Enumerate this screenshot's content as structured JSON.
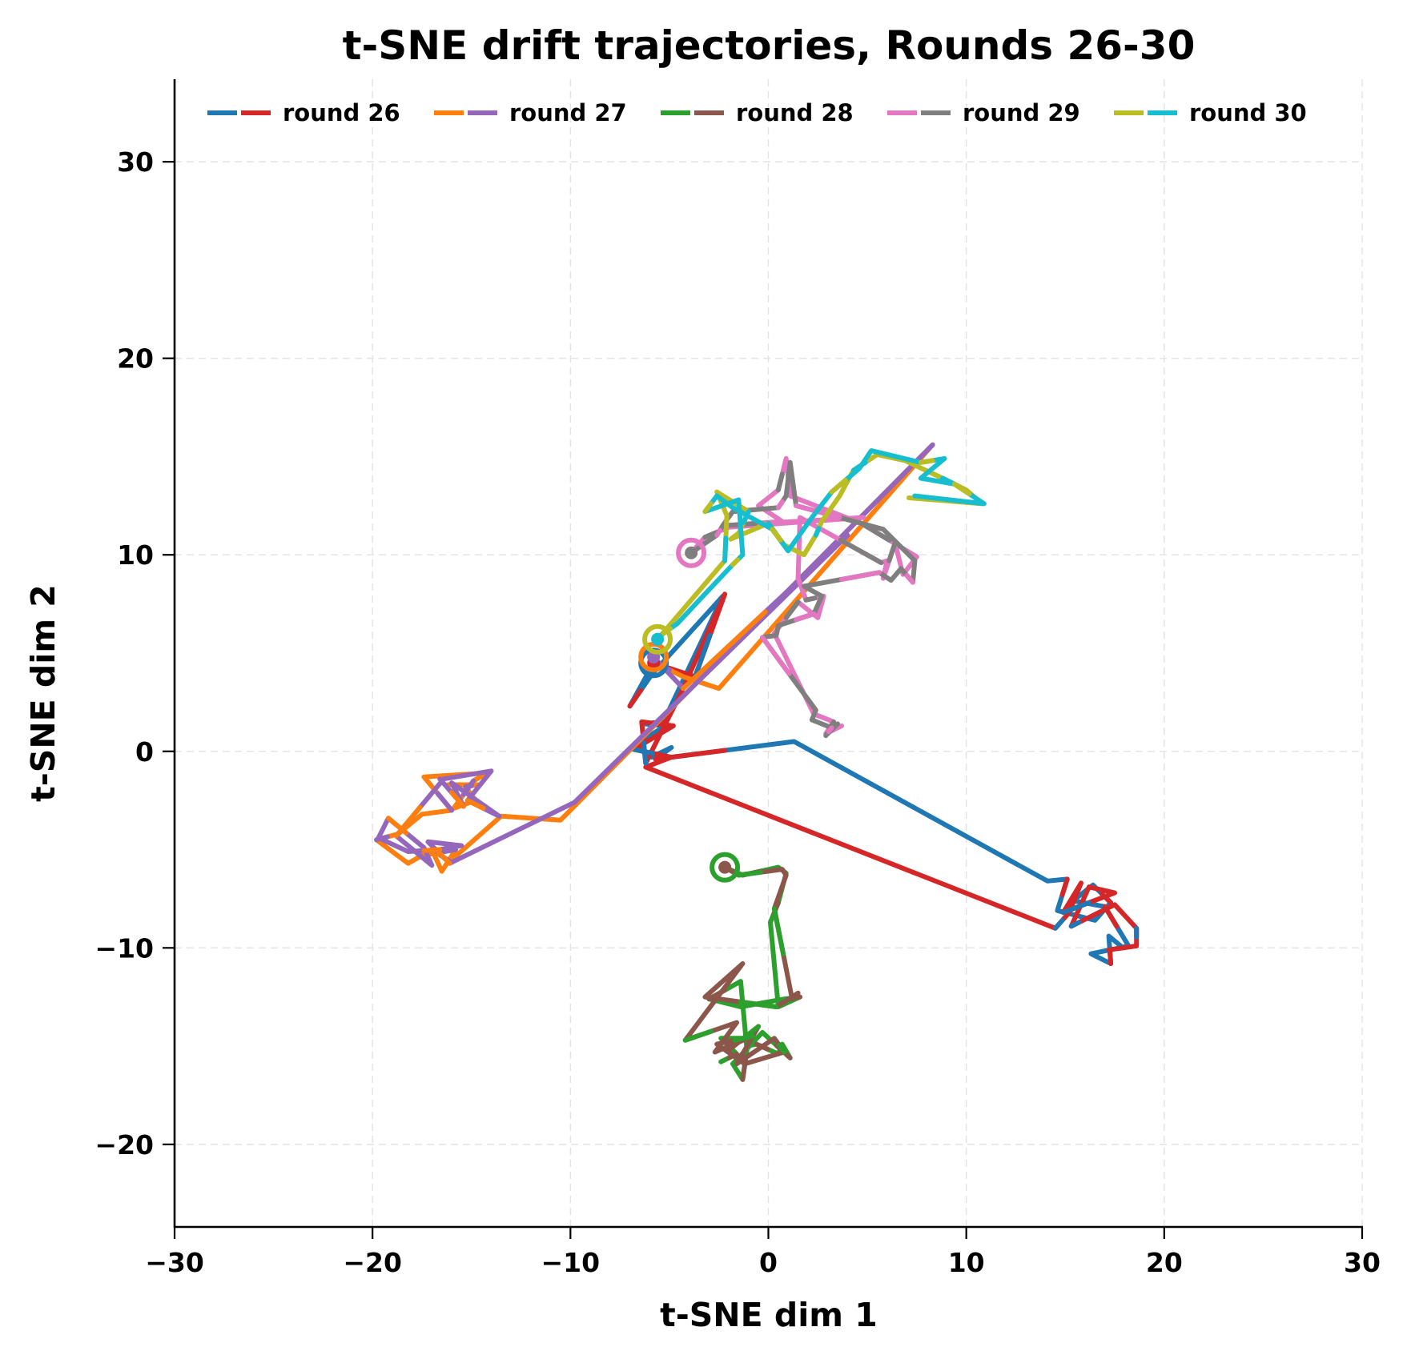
{
  "chart_data": {
    "type": "line",
    "title": "t-SNE drift trajectories, Rounds 26-30",
    "xlabel": "t-SNE dim 1",
    "ylabel": "t-SNE dim 2",
    "xlim": [
      -30,
      30
    ],
    "ylim": [
      -24.2,
      34.2
    ],
    "xticks": [
      -30,
      -20,
      -10,
      0,
      10,
      20,
      30
    ],
    "yticks": [
      -20,
      -10,
      0,
      10,
      20,
      30
    ],
    "xtick_labels": [
      "−30",
      "−20",
      "−10",
      "0",
      "10",
      "20",
      "30"
    ],
    "ytick_labels": [
      "−20",
      "−10",
      "0",
      "10",
      "20",
      "30"
    ],
    "grid": true,
    "legend_position": "upper center, inside, single row",
    "legend": [
      {
        "label": "round 26",
        "colors": [
          "#1f77b4",
          "#d62728"
        ]
      },
      {
        "label": "round 27",
        "colors": [
          "#ff7f0e",
          "#9467bd"
        ]
      },
      {
        "label": "round 28",
        "colors": [
          "#2ca02c",
          "#8c564b"
        ]
      },
      {
        "label": "round 29",
        "colors": [
          "#e377c2",
          "#7f7f7f"
        ]
      },
      {
        "label": "round 30",
        "colors": [
          "#bcbd22",
          "#17becf"
        ]
      }
    ],
    "series": [
      {
        "name": "round 26 (a)",
        "round": 26,
        "color": "#1f77b4",
        "start_marker": "ring",
        "points": [
          [
            -5.8,
            4.5
          ],
          [
            -7,
            2.3
          ],
          [
            -5.9,
            3.9
          ],
          [
            -2.3,
            7.9
          ],
          [
            -5.3,
            1.5
          ],
          [
            -6.3,
            1.4
          ],
          [
            -5.2,
            1.3
          ],
          [
            -6.8,
            0.3
          ],
          [
            -5.9,
            -0.3
          ],
          [
            -4.9,
            0.2
          ],
          [
            -5.7,
            -0.4
          ],
          [
            1.3,
            0.5
          ],
          [
            14.1,
            -6.6
          ],
          [
            15.1,
            -6.5
          ],
          [
            14.6,
            -8.1
          ],
          [
            16.5,
            -8.6
          ],
          [
            17.3,
            -7.7
          ],
          [
            16.4,
            -6.8
          ],
          [
            15.4,
            -7.6
          ],
          [
            17.0,
            -7.9
          ],
          [
            18.2,
            -9.9
          ],
          [
            16.3,
            -10.3
          ],
          [
            17.3,
            -10.8
          ],
          [
            17.2,
            -9.4
          ],
          [
            17.8,
            -9.9
          ]
        ]
      },
      {
        "name": "round 26 (b)",
        "round": 26,
        "color": "#d62728",
        "start_marker": "dot",
        "points": [
          [
            -5.8,
            4.5
          ],
          [
            -3.7,
            3.8
          ],
          [
            -2.2,
            8.0
          ],
          [
            -4.3,
            3.2
          ],
          [
            -6.2,
            -0.6
          ],
          [
            -6.4,
            1.5
          ],
          [
            -4.8,
            1.3
          ],
          [
            -6.8,
            0.1
          ],
          [
            -4.9,
            -0.3
          ],
          [
            -6.2,
            -0.8
          ],
          [
            14.5,
            -9.0
          ],
          [
            15.2,
            -8.2
          ],
          [
            15.8,
            -6.7
          ],
          [
            14.9,
            -8.2
          ],
          [
            17.5,
            -7.2
          ],
          [
            16.2,
            -6.9
          ],
          [
            15.3,
            -8.9
          ],
          [
            16.1,
            -8.5
          ],
          [
            17.5,
            -7.8
          ],
          [
            18.6,
            -9.0
          ],
          [
            18.6,
            -9.9
          ],
          [
            17.2,
            -10.1
          ]
        ]
      },
      {
        "name": "round 27 (a)",
        "round": 27,
        "color": "#ff7f0e",
        "start_marker": "ring",
        "points": [
          [
            -5.8,
            4.8
          ],
          [
            -5.7,
            4.5
          ],
          [
            -4.3,
            3.8
          ],
          [
            -2.5,
            3.2
          ],
          [
            8.3,
            15.6
          ],
          [
            -10.5,
            -3.5
          ],
          [
            -13.5,
            -3.3
          ],
          [
            -16.1,
            -5.6
          ],
          [
            -17.0,
            -5.0
          ],
          [
            -16.5,
            -6.1
          ],
          [
            -15.8,
            -5.0
          ],
          [
            -17.5,
            -5.3
          ],
          [
            -18.2,
            -5.7
          ],
          [
            -19.8,
            -4.5
          ],
          [
            -18.7,
            -4.2
          ],
          [
            -17.5,
            -3.2
          ],
          [
            -16.0,
            -3.0
          ],
          [
            -17.4,
            -1.3
          ],
          [
            -14.2,
            -1.1
          ],
          [
            -14.9,
            -1.5
          ],
          [
            -15.9,
            -2.9
          ],
          [
            -14.8,
            -2.5
          ],
          [
            -15.3,
            -1.8
          ],
          [
            -14.7,
            -1.7
          ],
          [
            -16.2,
            -1.7
          ]
        ]
      },
      {
        "name": "round 27 (b)",
        "round": 27,
        "color": "#9467bd",
        "start_marker": "dot",
        "points": [
          [
            -5.8,
            4.8
          ],
          [
            -4.3,
            3.2
          ],
          [
            4.0,
            11.0
          ],
          [
            -9.8,
            -2.6
          ],
          [
            -16.1,
            -5.7
          ],
          [
            -17.2,
            -4.6
          ],
          [
            -15.5,
            -4.8
          ],
          [
            -16.6,
            -5.0
          ],
          [
            -18.2,
            -5.1
          ],
          [
            -19.7,
            -4.4
          ],
          [
            -19.2,
            -3.4
          ],
          [
            -17.4,
            -4.9
          ],
          [
            -17.0,
            -5.8
          ],
          [
            -18.8,
            -4.3
          ],
          [
            -16.4,
            -1.4
          ],
          [
            -14.0,
            -1.0
          ],
          [
            -15.2,
            -2.5
          ],
          [
            -13.6,
            -3.3
          ],
          [
            -16.0,
            -1.6
          ],
          [
            -15.4,
            -2.8
          ],
          [
            -16.6,
            -1.4
          ]
        ]
      },
      {
        "name": "round 28 (a)",
        "round": 28,
        "color": "#2ca02c",
        "start_marker": "ring",
        "points": [
          [
            -2.2,
            -5.9
          ],
          [
            -1.3,
            -6.3
          ],
          [
            0.5,
            -5.9
          ],
          [
            0.9,
            -6.2
          ],
          [
            0.5,
            -7.7
          ],
          [
            0.1,
            -8.7
          ],
          [
            0.5,
            -13.0
          ],
          [
            1.6,
            -12.5
          ],
          [
            0.8,
            -12.6
          ],
          [
            -1.4,
            -13.0
          ],
          [
            -3.0,
            -12.6
          ],
          [
            -1.4,
            -11.7
          ],
          [
            -1.1,
            -15.0
          ],
          [
            -0.6,
            -14.9
          ],
          [
            0.5,
            -15.4
          ],
          [
            0.7,
            -14.9
          ],
          [
            1.1,
            -15.6
          ],
          [
            -0.3,
            -14.3
          ],
          [
            -1.8,
            -15.9
          ],
          [
            -1.3,
            -16.7
          ],
          [
            -1.0,
            -14.6
          ],
          [
            -2.4,
            -14.6
          ],
          [
            -1.6,
            -15.4
          ],
          [
            -2.4,
            -15.8
          ]
        ]
      },
      {
        "name": "round 28 (b)",
        "round": 28,
        "color": "#8c564b",
        "start_marker": "dot",
        "points": [
          [
            -2.2,
            -5.9
          ],
          [
            -1.5,
            -6.3
          ],
          [
            0.7,
            -6.0
          ],
          [
            0.9,
            -6.3
          ],
          [
            0.3,
            -8.0
          ],
          [
            1.2,
            -12.6
          ],
          [
            1.5,
            -12.3
          ],
          [
            0.4,
            -13.0
          ],
          [
            -3.2,
            -12.5
          ],
          [
            -1.3,
            -10.8
          ],
          [
            -4.2,
            -14.7
          ],
          [
            -1.6,
            -13.8
          ],
          [
            -2.7,
            -15.3
          ],
          [
            -0.8,
            -14.5
          ],
          [
            -2.6,
            -14.9
          ],
          [
            -1.2,
            -15.9
          ],
          [
            0.8,
            -15.3
          ],
          [
            0.3,
            -14.6
          ],
          [
            -1.6,
            -15.9
          ],
          [
            -0.5,
            -14.0
          ],
          [
            -2.0,
            -15.2
          ]
        ]
      },
      {
        "name": "round 29 (a)",
        "round": 29,
        "color": "#e377c2",
        "start_marker": "ring",
        "points": [
          [
            -3.9,
            10.1
          ],
          [
            -3.2,
            10.9
          ],
          [
            -2.0,
            11.4
          ],
          [
            4.8,
            11.9
          ],
          [
            -2.0,
            11.5
          ],
          [
            0.7,
            11.7
          ],
          [
            -0.5,
            12.5
          ],
          [
            0.5,
            13.3
          ],
          [
            0.9,
            14.9
          ],
          [
            1.1,
            13.0
          ],
          [
            4.7,
            11.6
          ],
          [
            7.5,
            9.9
          ],
          [
            6.8,
            9.0
          ],
          [
            6.4,
            10.6
          ],
          [
            5.8,
            8.8
          ],
          [
            6.0,
            9.7
          ],
          [
            5.7,
            9.6
          ],
          [
            1.6,
            11.9
          ],
          [
            1.5,
            8.8
          ],
          [
            1.9,
            7.7
          ],
          [
            2.8,
            7.9
          ],
          [
            2.5,
            6.8
          ],
          [
            1.5,
            7.6
          ],
          [
            0.3,
            6.0
          ],
          [
            2.3,
            1.9
          ],
          [
            3.3,
            1.5
          ],
          [
            2.9,
            0.9
          ],
          [
            3.7,
            1.3
          ]
        ]
      },
      {
        "name": "round 29 (b)",
        "round": 29,
        "color": "#7f7f7f",
        "start_marker": "dot",
        "points": [
          [
            -3.9,
            10.1
          ],
          [
            -2.6,
            11.0
          ],
          [
            -2.3,
            11.5
          ],
          [
            -1.8,
            12.2
          ],
          [
            0.5,
            12.4
          ],
          [
            0.9,
            13.0
          ],
          [
            1.1,
            14.7
          ],
          [
            1.4,
            12.5
          ],
          [
            5.8,
            11.3
          ],
          [
            7.4,
            9.7
          ],
          [
            7.3,
            8.6
          ],
          [
            6.7,
            9.3
          ],
          [
            6.2,
            8.7
          ],
          [
            5.6,
            9.1
          ],
          [
            1.8,
            8.4
          ],
          [
            2.7,
            7.9
          ],
          [
            2.3,
            7.0
          ],
          [
            0.5,
            6.4
          ],
          [
            0.4,
            5.9
          ],
          [
            -0.3,
            5.8
          ],
          [
            2.4,
            2.1
          ],
          [
            2.2,
            1.6
          ],
          [
            3.2,
            1.2
          ],
          [
            2.9,
            0.8
          ],
          [
            3.5,
            1.4
          ]
        ]
      },
      {
        "name": "round 30 (a)",
        "round": 30,
        "color": "#bcbd22",
        "start_marker": "ring",
        "points": [
          [
            -5.6,
            5.7
          ],
          [
            -2.2,
            9.7
          ],
          [
            -2.1,
            12.0
          ],
          [
            -2.6,
            13.2
          ],
          [
            -1.0,
            12.2
          ],
          [
            -1.5,
            11.1
          ],
          [
            -1.9,
            10.8
          ],
          [
            0.0,
            11.6
          ],
          [
            0.8,
            10.5
          ],
          [
            1.8,
            10.0
          ],
          [
            2.4,
            11.0
          ],
          [
            2.7,
            11.7
          ],
          [
            3.6,
            13.0
          ],
          [
            4.3,
            14.3
          ],
          [
            5.5,
            15.1
          ],
          [
            6.9,
            14.8
          ],
          [
            8.8,
            13.9
          ],
          [
            10.0,
            13.3
          ],
          [
            10.8,
            12.6
          ],
          [
            7.1,
            12.9
          ]
        ]
      },
      {
        "name": "round 30 (b)",
        "round": 30,
        "color": "#17becf",
        "start_marker": "dot",
        "points": [
          [
            -5.6,
            5.7
          ],
          [
            -5.3,
            6.0
          ],
          [
            -4.6,
            6.5
          ],
          [
            -3.3,
            7.9
          ],
          [
            -1.8,
            9.5
          ],
          [
            -1.3,
            10.0
          ],
          [
            -1.5,
            12.8
          ],
          [
            -3.2,
            12.2
          ],
          [
            -2.6,
            13.0
          ],
          [
            -1.8,
            12.4
          ],
          [
            0.2,
            11.3
          ],
          [
            1.0,
            10.2
          ],
          [
            2.2,
            11.9
          ],
          [
            3.2,
            13.2
          ],
          [
            4.6,
            14.4
          ],
          [
            5.2,
            15.3
          ],
          [
            7.7,
            14.7
          ],
          [
            8.9,
            14.9
          ],
          [
            7.7,
            13.9
          ],
          [
            9.4,
            13.6
          ],
          [
            10.9,
            12.6
          ],
          [
            7.4,
            13.0
          ]
        ]
      }
    ]
  }
}
